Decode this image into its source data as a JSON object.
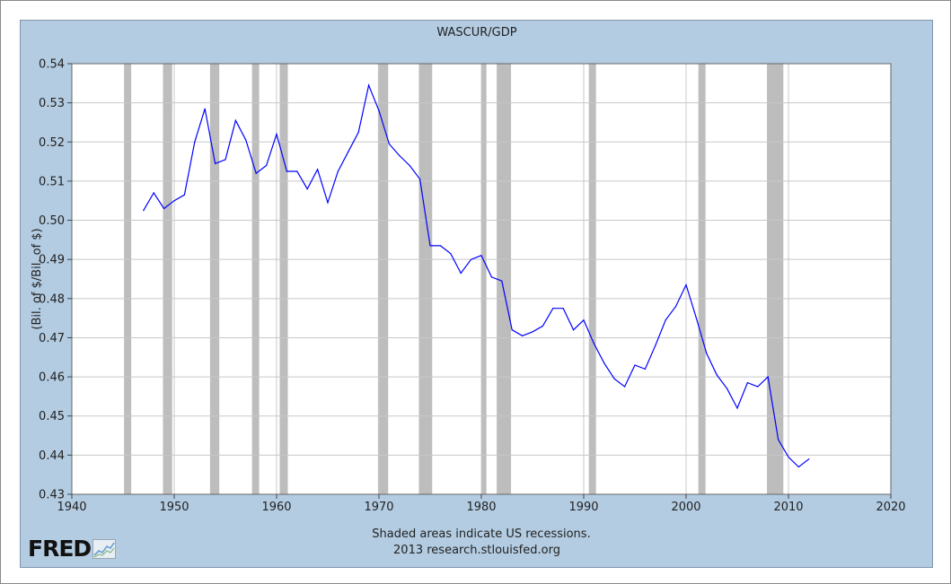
{
  "chart_data": {
    "type": "line",
    "title": "WASCUR/GDP",
    "ylabel": "(Bil. of $/Bil. of $)",
    "xlabel": "",
    "xlim": [
      1940,
      2020
    ],
    "ylim": [
      0.43,
      0.54
    ],
    "x_ticks": [
      "1940",
      "1950",
      "1960",
      "1970",
      "1980",
      "1990",
      "2000",
      "2010",
      "2020"
    ],
    "y_ticks": [
      "0.54",
      "0.53",
      "0.52",
      "0.51",
      "0.50",
      "0.49",
      "0.48",
      "0.47",
      "0.46",
      "0.45",
      "0.44",
      "0.43"
    ],
    "grid": true,
    "series": [
      {
        "color": "#0000ff",
        "x": [
          1947,
          1948,
          1949,
          1950,
          1951,
          1952,
          1953,
          1954,
          1955,
          1956,
          1957,
          1958,
          1959,
          1960,
          1961,
          1962,
          1963,
          1964,
          1965,
          1966,
          1967,
          1968,
          1969,
          1970,
          1971,
          1972,
          1973,
          1974,
          1975,
          1976,
          1977,
          1978,
          1979,
          1980,
          1981,
          1982,
          1983,
          1984,
          1985,
          1986,
          1987,
          1988,
          1989,
          1990,
          1991,
          1992,
          1993,
          1994,
          1995,
          1996,
          1997,
          1998,
          1999,
          2000,
          2001,
          2002,
          2003,
          2004,
          2005,
          2006,
          2007,
          2008,
          2009,
          2010,
          2011,
          2012
        ],
        "y": [
          0.5025,
          0.507,
          0.503,
          0.505,
          0.5065,
          0.52,
          0.5285,
          0.5145,
          0.5155,
          0.5255,
          0.5205,
          0.512,
          0.514,
          0.522,
          0.5125,
          0.5125,
          0.508,
          0.513,
          0.5045,
          0.5125,
          0.5175,
          0.5225,
          0.5345,
          0.528,
          0.5195,
          0.5165,
          0.514,
          0.5105,
          0.4935,
          0.4935,
          0.4915,
          0.4865,
          0.49,
          0.491,
          0.4855,
          0.4845,
          0.472,
          0.4705,
          0.4715,
          0.473,
          0.4775,
          0.4775,
          0.472,
          0.4745,
          0.4685,
          0.4635,
          0.4595,
          0.4575,
          0.463,
          0.462,
          0.468,
          0.4745,
          0.478,
          0.4835,
          0.475,
          0.466,
          0.4605,
          0.457,
          0.452,
          0.4585,
          0.4575,
          0.46,
          0.444,
          0.4395,
          0.437,
          0.439
        ]
      }
    ],
    "recessions": [
      [
        1945.1,
        1945.8
      ],
      [
        1948.9,
        1949.8
      ],
      [
        1953.5,
        1954.4
      ],
      [
        1957.6,
        1958.3
      ],
      [
        1960.3,
        1961.1
      ],
      [
        1969.9,
        1970.9
      ],
      [
        1973.9,
        1975.2
      ],
      [
        1980.0,
        1980.5
      ],
      [
        1981.5,
        1982.9
      ],
      [
        1990.5,
        1991.2
      ],
      [
        2001.2,
        2001.9
      ],
      [
        2007.9,
        2009.5
      ]
    ],
    "recession_color": "#bdbdbd",
    "annotations": [
      "Shaded areas indicate US recessions.",
      "2013 research.stlouisfed.org"
    ]
  },
  "logo": {
    "text": "FRED",
    "icon": "fred-chart-icon"
  }
}
